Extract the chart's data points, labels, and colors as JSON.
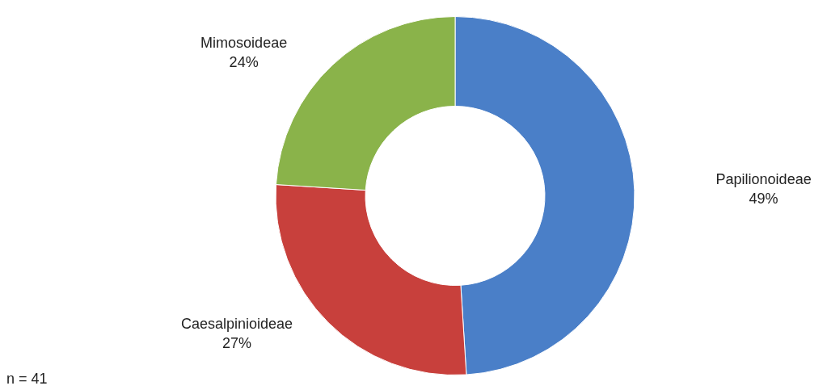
{
  "chart_data": {
    "type": "donut",
    "categories": [
      "Papilionoideae",
      "Caesalpinioideae",
      "Mimosoideae"
    ],
    "values": [
      49,
      27,
      24
    ],
    "value_labels": [
      "49%",
      "27%",
      "24%"
    ],
    "colors": [
      "#4a7fc8",
      "#c8403c",
      "#8ab34a"
    ],
    "annotations": [
      "n = 41"
    ],
    "legend": false
  }
}
